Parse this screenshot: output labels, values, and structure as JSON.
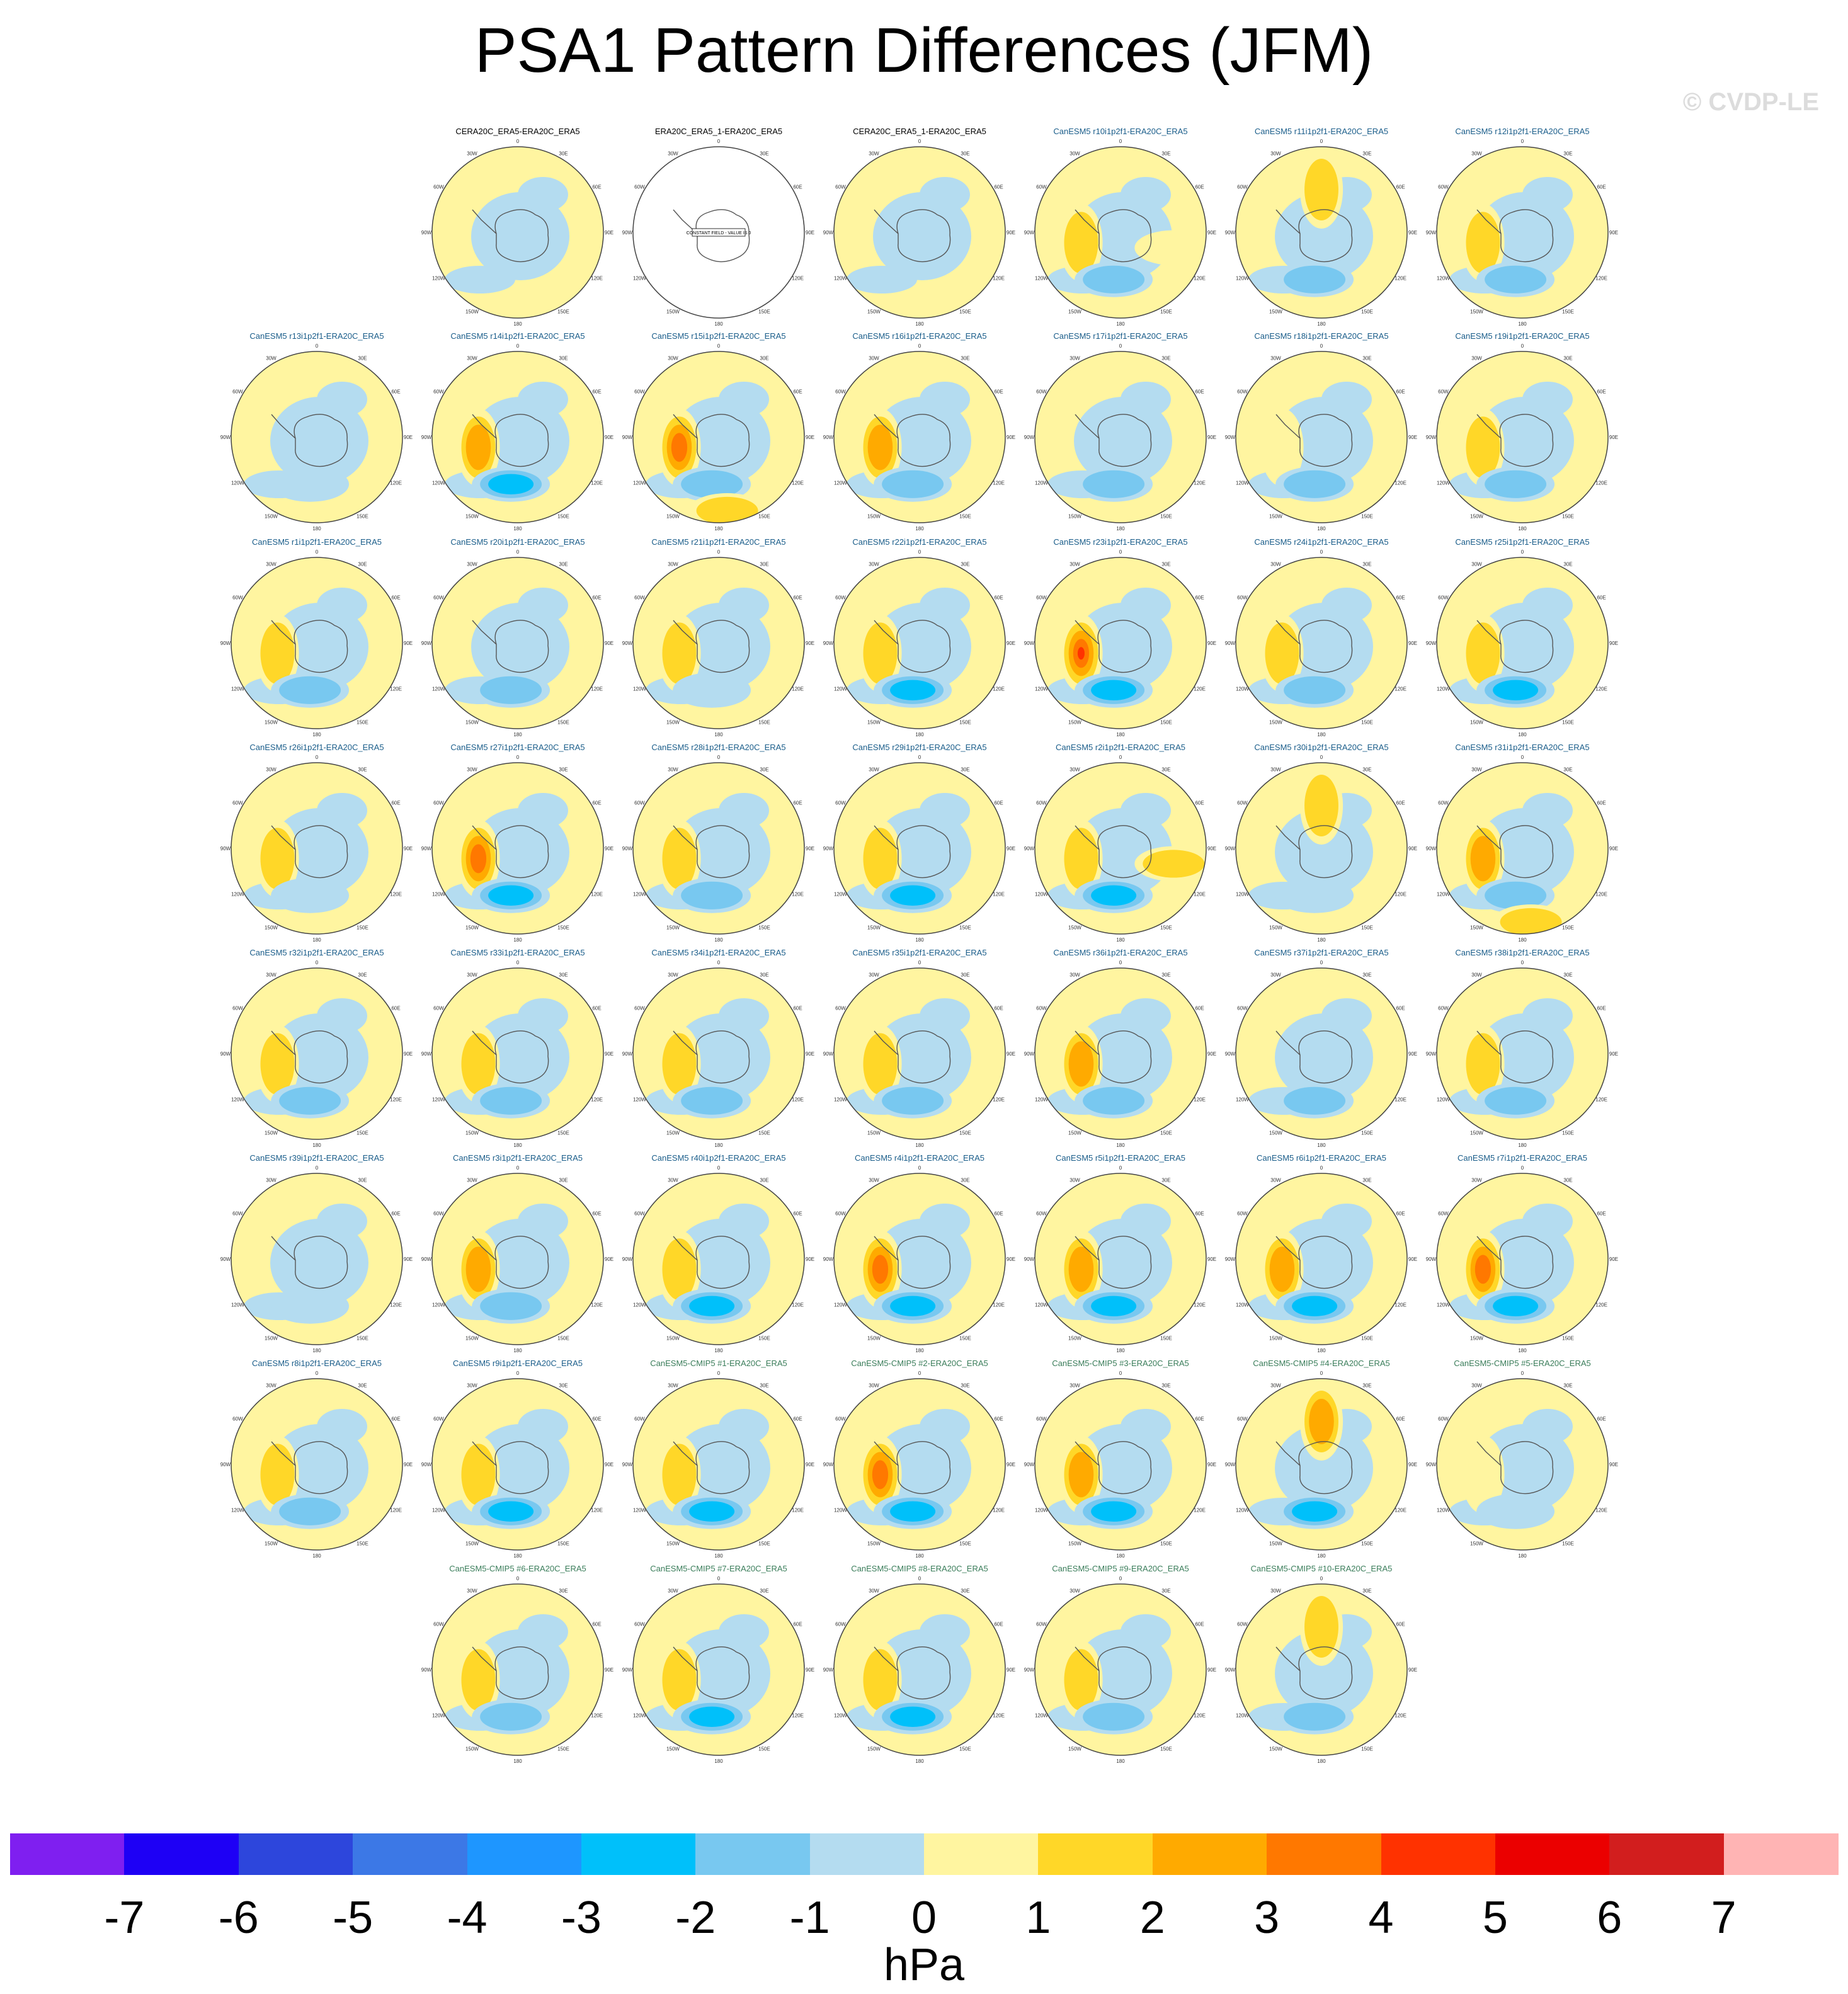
{
  "chart_data": {
    "type": "heatmap",
    "title": "PSA1 Pattern Differences (JFM)",
    "watermark": "© CVDP-LE",
    "units": "hPa",
    "projection": "south-polar-stereographic",
    "lon_labels": [
      "0",
      "30E",
      "60E",
      "90E",
      "120E",
      "150E",
      "180",
      "150W",
      "120W",
      "90W",
      "60W",
      "30W"
    ],
    "colorbar": {
      "tick_labels": [
        "-7",
        "-6",
        "-5",
        "-4",
        "-3",
        "-2",
        "-1",
        "0",
        "1",
        "2",
        "3",
        "4",
        "5",
        "6",
        "7"
      ],
      "colors": [
        "#7f1ff0",
        "#1e00f5",
        "#2d46dc",
        "#3c78e6",
        "#1e96ff",
        "#00c0fa",
        "#78c8f0",
        "#b4dcf0",
        "#fff5a0",
        "#ffd728",
        "#ffaa00",
        "#ff7800",
        "#ff3200",
        "#eb0000",
        "#d21e1e",
        "#ffb4b4"
      ]
    },
    "panels": [
      {
        "title": "CERA20C_ERA5-ERA20C_ERA5",
        "kind": "obs",
        "pattern": []
      },
      {
        "title": "ERA20C_ERA5_1-ERA20C_ERA5",
        "kind": "obs",
        "constant": "CONSTANT FIELD - VALUE IS 0",
        "pattern": []
      },
      {
        "title": "CERA20C_ERA5_1-ERA20C_ERA5",
        "kind": "obs",
        "pattern": []
      },
      {
        "title": "CanESM5 r10i1p2f1-ERA20C_ERA5",
        "kind": "model",
        "pattern": [
          [
            1.5,
            "w"
          ],
          [
            -1.5,
            "s"
          ],
          [
            1,
            "e"
          ]
        ]
      },
      {
        "title": "CanESM5 r11i1p2f1-ERA20C_ERA5",
        "kind": "model",
        "pattern": [
          [
            1.5,
            "n"
          ],
          [
            -2,
            "s"
          ]
        ]
      },
      {
        "title": "CanESM5 r12i1p2f1-ERA20C_ERA5",
        "kind": "model",
        "pattern": [
          [
            1.5,
            "w"
          ],
          [
            -2,
            "s"
          ]
        ]
      },
      {
        "title": "CanESM5 r13i1p2f1-ERA20C_ERA5",
        "kind": "model",
        "pattern": [
          [
            -1,
            "s"
          ]
        ]
      },
      {
        "title": "CanESM5 r14i1p2f1-ERA20C_ERA5",
        "kind": "model",
        "pattern": [
          [
            3,
            "w"
          ],
          [
            -2.5,
            "s"
          ]
        ]
      },
      {
        "title": "CanESM5 r15i1p2f1-ERA20C_ERA5",
        "kind": "model",
        "pattern": [
          [
            4,
            "w"
          ],
          [
            -2,
            "s"
          ],
          [
            1.5,
            "ss"
          ]
        ]
      },
      {
        "title": "CanESM5 r16i1p2f1-ERA20C_ERA5",
        "kind": "model",
        "pattern": [
          [
            2.5,
            "w"
          ],
          [
            -2,
            "s"
          ]
        ]
      },
      {
        "title": "CanESM5 r17i1p2f1-ERA20C_ERA5",
        "kind": "model",
        "pattern": [
          [
            -1.5,
            "s"
          ]
        ]
      },
      {
        "title": "CanESM5 r18i1p2f1-ERA20C_ERA5",
        "kind": "model",
        "pattern": [
          [
            1,
            "w"
          ],
          [
            -1.5,
            "s"
          ]
        ]
      },
      {
        "title": "CanESM5 r19i1p2f1-ERA20C_ERA5",
        "kind": "model",
        "pattern": [
          [
            2,
            "w"
          ],
          [
            -2,
            "s"
          ]
        ]
      },
      {
        "title": "CanESM5 r1i1p2f1-ERA20C_ERA5",
        "kind": "model",
        "pattern": [
          [
            1.5,
            "w"
          ],
          [
            -1.5,
            "s"
          ]
        ]
      },
      {
        "title": "CanESM5 r20i1p2f1-ERA20C_ERA5",
        "kind": "model",
        "pattern": [
          [
            -2,
            "s"
          ]
        ]
      },
      {
        "title": "CanESM5 r21i1p2f1-ERA20C_ERA5",
        "kind": "model",
        "pattern": [
          [
            1.5,
            "w"
          ],
          [
            -1,
            "s"
          ]
        ]
      },
      {
        "title": "CanESM5 r22i1p2f1-ERA20C_ERA5",
        "kind": "model",
        "pattern": [
          [
            2,
            "w"
          ],
          [
            -2.5,
            "s"
          ]
        ]
      },
      {
        "title": "CanESM5 r23i1p2f1-ERA20C_ERA5",
        "kind": "model",
        "pattern": [
          [
            5,
            "w"
          ],
          [
            -2.5,
            "s"
          ]
        ]
      },
      {
        "title": "CanESM5 r24i1p2f1-ERA20C_ERA5",
        "kind": "model",
        "pattern": [
          [
            2,
            "w"
          ],
          [
            -2,
            "s"
          ]
        ]
      },
      {
        "title": "CanESM5 r25i1p2f1-ERA20C_ERA5",
        "kind": "model",
        "pattern": [
          [
            1.5,
            "w"
          ],
          [
            -2.5,
            "s"
          ]
        ]
      },
      {
        "title": "CanESM5 r26i1p2f1-ERA20C_ERA5",
        "kind": "model",
        "pattern": [
          [
            1.5,
            "w"
          ],
          [
            -1,
            "s"
          ]
        ]
      },
      {
        "title": "CanESM5 r27i1p2f1-ERA20C_ERA5",
        "kind": "model",
        "pattern": [
          [
            3.5,
            "w"
          ],
          [
            -2.5,
            "s"
          ]
        ]
      },
      {
        "title": "CanESM5 r28i1p2f1-ERA20C_ERA5",
        "kind": "model",
        "pattern": [
          [
            1.5,
            "w"
          ],
          [
            -2,
            "s"
          ]
        ]
      },
      {
        "title": "CanESM5 r29i1p2f1-ERA20C_ERA5",
        "kind": "model",
        "pattern": [
          [
            2,
            "w"
          ],
          [
            -2.5,
            "s"
          ]
        ]
      },
      {
        "title": "CanESM5 r2i1p2f1-ERA20C_ERA5",
        "kind": "model",
        "pattern": [
          [
            2,
            "w"
          ],
          [
            -2.5,
            "s"
          ],
          [
            1.5,
            "e"
          ]
        ]
      },
      {
        "title": "CanESM5 r30i1p2f1-ERA20C_ERA5",
        "kind": "model",
        "pattern": [
          [
            1.5,
            "n"
          ],
          [
            -1,
            "s"
          ]
        ]
      },
      {
        "title": "CanESM5 r31i1p2f1-ERA20C_ERA5",
        "kind": "model",
        "pattern": [
          [
            3,
            "w"
          ],
          [
            -2,
            "s"
          ],
          [
            1.5,
            "ss"
          ]
        ]
      },
      {
        "title": "CanESM5 r32i1p2f1-ERA20C_ERA5",
        "kind": "model",
        "pattern": [
          [
            2,
            "w"
          ],
          [
            -2,
            "s"
          ]
        ]
      },
      {
        "title": "CanESM5 r33i1p2f1-ERA20C_ERA5",
        "kind": "model",
        "pattern": [
          [
            1.5,
            "w"
          ],
          [
            -2,
            "s"
          ]
        ]
      },
      {
        "title": "CanESM5 r34i1p2f1-ERA20C_ERA5",
        "kind": "model",
        "pattern": [
          [
            1.5,
            "w"
          ],
          [
            -2,
            "s"
          ]
        ]
      },
      {
        "title": "CanESM5 r35i1p2f1-ERA20C_ERA5",
        "kind": "model",
        "pattern": [
          [
            2,
            "w"
          ],
          [
            -2,
            "s"
          ]
        ]
      },
      {
        "title": "CanESM5 r36i1p2f1-ERA20C_ERA5",
        "kind": "model",
        "pattern": [
          [
            3,
            "w"
          ],
          [
            -2,
            "s"
          ]
        ]
      },
      {
        "title": "CanESM5 r37i1p2f1-ERA20C_ERA5",
        "kind": "model",
        "pattern": [
          [
            -1.5,
            "s"
          ]
        ]
      },
      {
        "title": "CanESM5 r38i1p2f1-ERA20C_ERA5",
        "kind": "model",
        "pattern": [
          [
            1.5,
            "w"
          ],
          [
            -1.5,
            "s"
          ]
        ]
      },
      {
        "title": "CanESM5 r39i1p2f1-ERA20C_ERA5",
        "kind": "model",
        "pattern": [
          [
            -1,
            "s"
          ]
        ]
      },
      {
        "title": "CanESM5 r3i1p2f1-ERA20C_ERA5",
        "kind": "model",
        "pattern": [
          [
            2.5,
            "w"
          ],
          [
            -2,
            "s"
          ]
        ]
      },
      {
        "title": "CanESM5 r40i1p2f1-ERA20C_ERA5",
        "kind": "model",
        "pattern": [
          [
            1.5,
            "w"
          ],
          [
            -2.5,
            "s"
          ]
        ]
      },
      {
        "title": "CanESM5 r4i1p2f1-ERA20C_ERA5",
        "kind": "model",
        "pattern": [
          [
            4,
            "w"
          ],
          [
            -2.5,
            "s"
          ]
        ]
      },
      {
        "title": "CanESM5 r5i1p2f1-ERA20C_ERA5",
        "kind": "model",
        "pattern": [
          [
            3,
            "w"
          ],
          [
            -2.5,
            "s"
          ]
        ]
      },
      {
        "title": "CanESM5 r6i1p2f1-ERA20C_ERA5",
        "kind": "model",
        "pattern": [
          [
            3,
            "w"
          ],
          [
            -2.5,
            "s"
          ]
        ]
      },
      {
        "title": "CanESM5 r7i1p2f1-ERA20C_ERA5",
        "kind": "model",
        "pattern": [
          [
            4,
            "w"
          ],
          [
            -2.5,
            "s"
          ]
        ]
      },
      {
        "title": "CanESM5 r8i1p2f1-ERA20C_ERA5",
        "kind": "model",
        "pattern": [
          [
            2,
            "w"
          ],
          [
            -1.5,
            "s"
          ]
        ]
      },
      {
        "title": "CanESM5 r9i1p2f1-ERA20C_ERA5",
        "kind": "model",
        "pattern": [
          [
            1.5,
            "w"
          ],
          [
            -2.5,
            "s"
          ]
        ]
      },
      {
        "title": "CanESM5-CMIP5 #1-ERA20C_ERA5",
        "kind": "cmip5",
        "pattern": [
          [
            2,
            "w"
          ],
          [
            -2.5,
            "s"
          ]
        ]
      },
      {
        "title": "CanESM5-CMIP5 #2-ERA20C_ERA5",
        "kind": "cmip5",
        "pattern": [
          [
            3.5,
            "w"
          ],
          [
            -2.5,
            "s"
          ]
        ]
      },
      {
        "title": "CanESM5-CMIP5 #3-ERA20C_ERA5",
        "kind": "cmip5",
        "pattern": [
          [
            3,
            "w"
          ],
          [
            -2.5,
            "s"
          ]
        ]
      },
      {
        "title": "CanESM5-CMIP5 #4-ERA20C_ERA5",
        "kind": "cmip5",
        "pattern": [
          [
            2.5,
            "n"
          ],
          [
            -2.5,
            "s"
          ]
        ]
      },
      {
        "title": "CanESM5-CMIP5 #5-ERA20C_ERA5",
        "kind": "cmip5",
        "pattern": [
          [
            1,
            "w"
          ],
          [
            -1,
            "s"
          ]
        ]
      },
      {
        "title": "CanESM5-CMIP5 #6-ERA20C_ERA5",
        "kind": "cmip5",
        "pattern": [
          [
            1.5,
            "w"
          ],
          [
            -2,
            "s"
          ]
        ]
      },
      {
        "title": "CanESM5-CMIP5 #7-ERA20C_ERA5",
        "kind": "cmip5",
        "pattern": [
          [
            2,
            "w"
          ],
          [
            -3,
            "s"
          ]
        ]
      },
      {
        "title": "CanESM5-CMIP5 #8-ERA20C_ERA5",
        "kind": "cmip5",
        "pattern": [
          [
            1.5,
            "w"
          ],
          [
            -2.5,
            "s"
          ]
        ]
      },
      {
        "title": "CanESM5-CMIP5 #9-ERA20C_ERA5",
        "kind": "cmip5",
        "pattern": [
          [
            1.5,
            "w"
          ],
          [
            -2,
            "s"
          ]
        ]
      },
      {
        "title": "CanESM5-CMIP5 #10-ERA20C_ERA5",
        "kind": "cmip5",
        "pattern": [
          [
            1.5,
            "n"
          ],
          [
            -2,
            "s"
          ]
        ]
      }
    ]
  }
}
